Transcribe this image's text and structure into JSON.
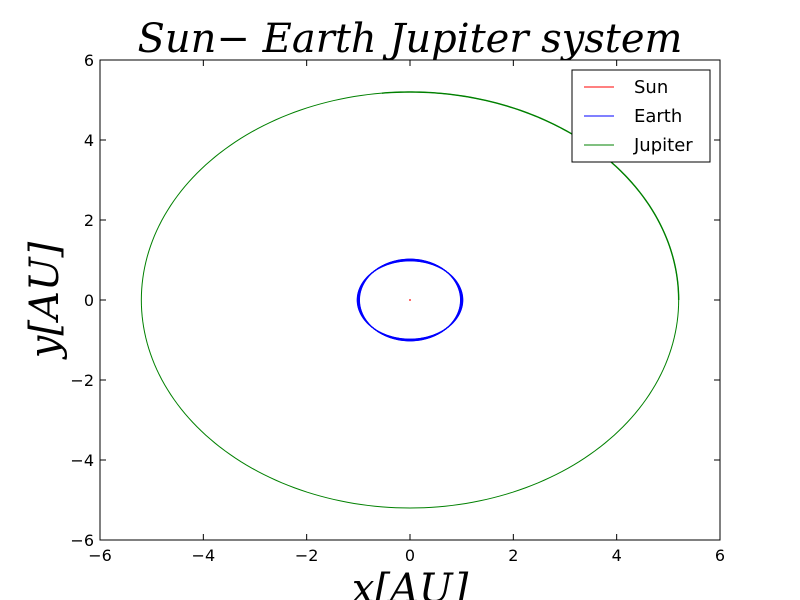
{
  "chart_data": {
    "type": "line",
    "title": "Sun− Earth Jupiter system",
    "xlabel": "x[AU]",
    "ylabel": "y[AU]",
    "xlim": [
      -6,
      6
    ],
    "ylim": [
      -6,
      6
    ],
    "xticks": [
      -6,
      -4,
      -2,
      0,
      2,
      4,
      6
    ],
    "yticks": [
      -6,
      -4,
      -2,
      0,
      2,
      4,
      6
    ],
    "xtick_labels": [
      "−6",
      "−4",
      "−2",
      "0",
      "2",
      "4",
      "6"
    ],
    "ytick_labels": [
      "−6",
      "−4",
      "−2",
      "0",
      "2",
      "4",
      "6"
    ],
    "grid": false,
    "legend": "top-right",
    "series": [
      {
        "name": "Sun",
        "color": "#ff0000",
        "shape": "point",
        "x": [
          0.0
        ],
        "y": [
          0.0
        ]
      },
      {
        "name": "Earth",
        "color": "#0000ff",
        "shape": "orbit",
        "center": [
          0.0,
          0.0
        ],
        "radius_x": 1.0,
        "radius_y": 1.0,
        "start_deg": 0,
        "end_deg": 360,
        "revolutions": 12
      },
      {
        "name": "Jupiter",
        "color": "#008000",
        "shape": "orbit",
        "center": [
          0.0,
          0.0
        ],
        "radius_x": 5.2,
        "radius_y": 5.2,
        "start_deg": 0,
        "end_deg": 96
      }
    ]
  }
}
